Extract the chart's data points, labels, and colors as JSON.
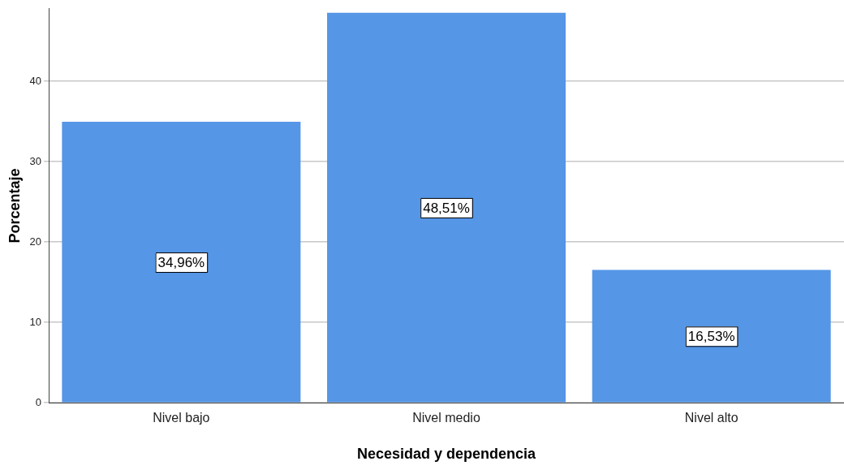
{
  "chart_data": {
    "type": "bar",
    "xlabel": "Necesidad y dependencia",
    "ylabel": "Porcentaje",
    "categories": [
      "Nivel bajo",
      "Nivel medio",
      "Nivel alto"
    ],
    "values": [
      34.96,
      48.51,
      16.53
    ],
    "value_labels": [
      "34,96%",
      "48,51%",
      "16,53%"
    ],
    "color": "#5596e6",
    "ylim": [
      0,
      49
    ],
    "yticks": [
      0,
      10,
      20,
      30,
      40
    ],
    "grid": "y"
  }
}
